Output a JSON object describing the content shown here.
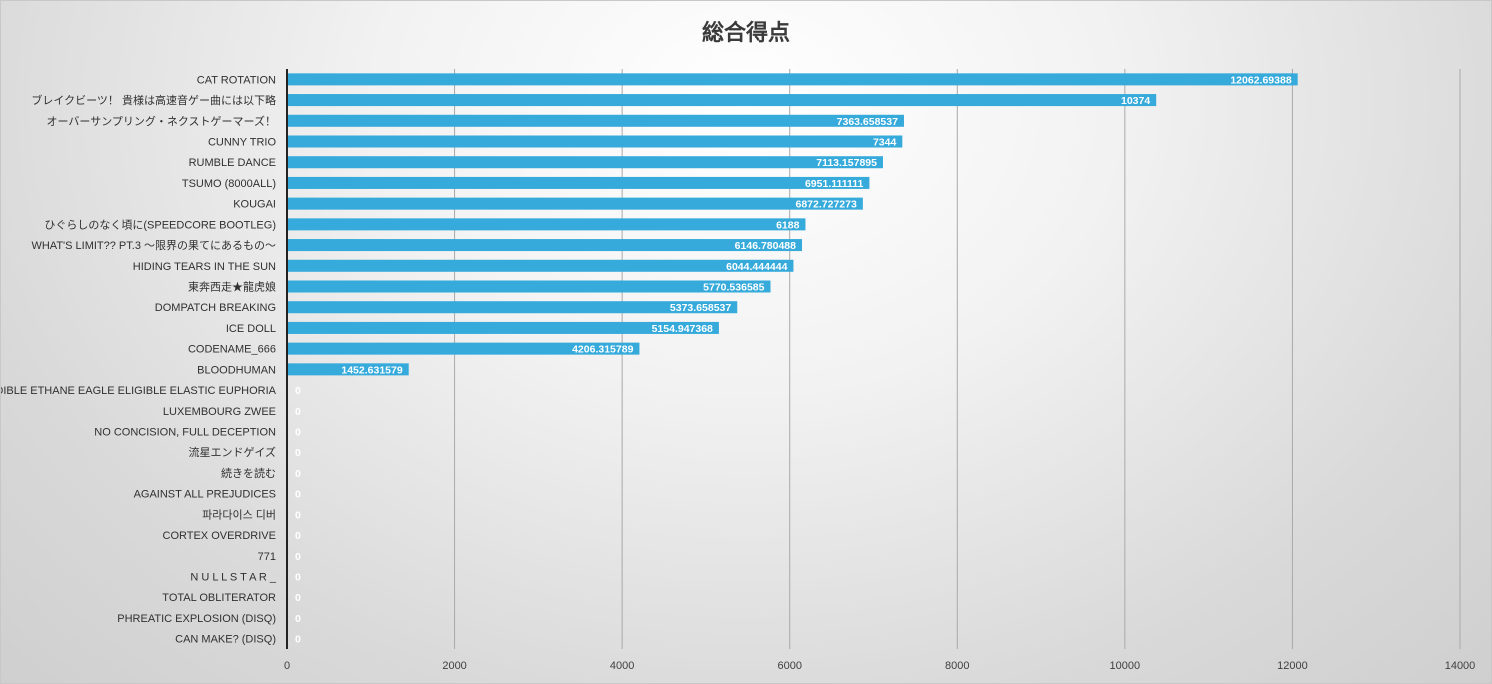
{
  "chart_data": {
    "type": "bar",
    "orientation": "horizontal",
    "title": "総合得点",
    "xlabel": "",
    "ylabel": "",
    "xlim": [
      0,
      14000
    ],
    "xticks": [
      "0",
      "2000",
      "4000",
      "6000",
      "8000",
      "10000",
      "12000",
      "14000"
    ],
    "grid": true,
    "legend": "none",
    "bar_color": "#35aadb",
    "categories": [
      "CAT ROTATION",
      "ブレイクビーツ！ 貴様は高速音ゲー曲には以下略",
      "オーバーサンプリング・ネクストゲーマーズ！",
      "CUNNY TRIO",
      "RUMBLE DANCE",
      "TSUMO (8000ALL)",
      "KOUGAI",
      "ひぐらしのなく頃に(SPEEDCORE BOOTLEG)",
      "WHAT'S LIMIT?? PT.3 〜限界の果てにあるもの〜",
      "HIDING TEARS IN THE SUN",
      "東奔西走★龍虎娘",
      "DOMPATCH BREAKING",
      "ICE DOLL",
      "CODENAME_666",
      "BLOODHUMAN",
      "EDIBLE ETHANE EAGLE ELIGIBLE ELASTIC EUPHORIA",
      "LUXEMBOURG ZWEE",
      "NO CONCISION, FULL DECEPTION",
      "流星エンドゲイズ",
      "続きを読む",
      "AGAINST ALL PREJUDICES",
      "파라다이스 디버",
      "CORTEX OVERDRIVE",
      "771",
      "N U L L S T A R _",
      "TOTAL OBLITERATOR",
      "PHREATIC EXPLOSION (DISQ)",
      "CAN MAKE? (DISQ)"
    ],
    "values": [
      12062.69388,
      10374,
      7363.658537,
      7344,
      7113.157895,
      6951.111111,
      6872.727273,
      6188,
      6146.780488,
      6044.444444,
      5770.536585,
      5373.658537,
      5154.947368,
      4206.315789,
      1452.631579,
      0,
      0,
      0,
      0,
      0,
      0,
      0,
      0,
      0,
      0,
      0,
      0,
      0
    ],
    "data_labels": [
      "12062.69388",
      "10374",
      "7363.658537",
      "7344",
      "7113.157895",
      "6951.111111",
      "6872.727273",
      "6188",
      "6146.780488",
      "6044.444444",
      "5770.536585",
      "5373.658537",
      "5154.947368",
      "4206.315789",
      "1452.631579",
      "0",
      "0",
      "0",
      "0",
      "0",
      "0",
      "0",
      "0",
      "0",
      "0",
      "0",
      "0",
      "0"
    ]
  }
}
